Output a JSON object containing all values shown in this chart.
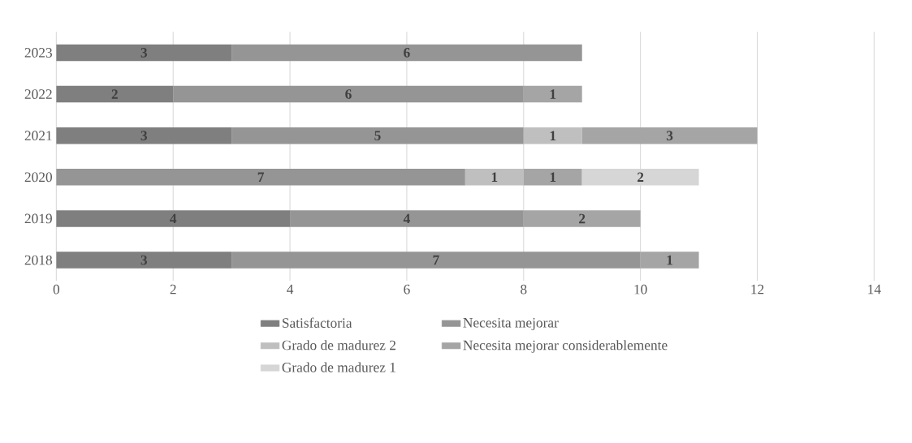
{
  "chart_data": {
    "type": "bar",
    "orientation": "horizontal",
    "stacked": true,
    "data_labels": true,
    "grid": "x",
    "legend": "bottom",
    "categories": [
      "2023",
      "2022",
      "2021",
      "2020",
      "2019",
      "2018"
    ],
    "series": [
      {
        "name": "Satisfactoria",
        "color": "#7f7f7f",
        "values": [
          3,
          2,
          3,
          null,
          4,
          3
        ]
      },
      {
        "name": "Necesita mejorar",
        "color": "#959595",
        "values": [
          6,
          6,
          5,
          7,
          4,
          7
        ]
      },
      {
        "name": "Grado de madurez 2",
        "color": "#bfbfbf",
        "values": [
          null,
          null,
          1,
          1,
          null,
          null
        ]
      },
      {
        "name": "Necesita mejorar considerablemente",
        "color": "#a5a5a5",
        "values": [
          null,
          1,
          3,
          1,
          2,
          1
        ]
      },
      {
        "name": "Grado de madurez 1",
        "color": "#d6d6d6",
        "values": [
          null,
          null,
          null,
          2,
          null,
          null
        ]
      }
    ],
    "xlim": [
      0,
      14
    ],
    "xticks": [
      0,
      2,
      4,
      6,
      8,
      10,
      12,
      14
    ]
  }
}
